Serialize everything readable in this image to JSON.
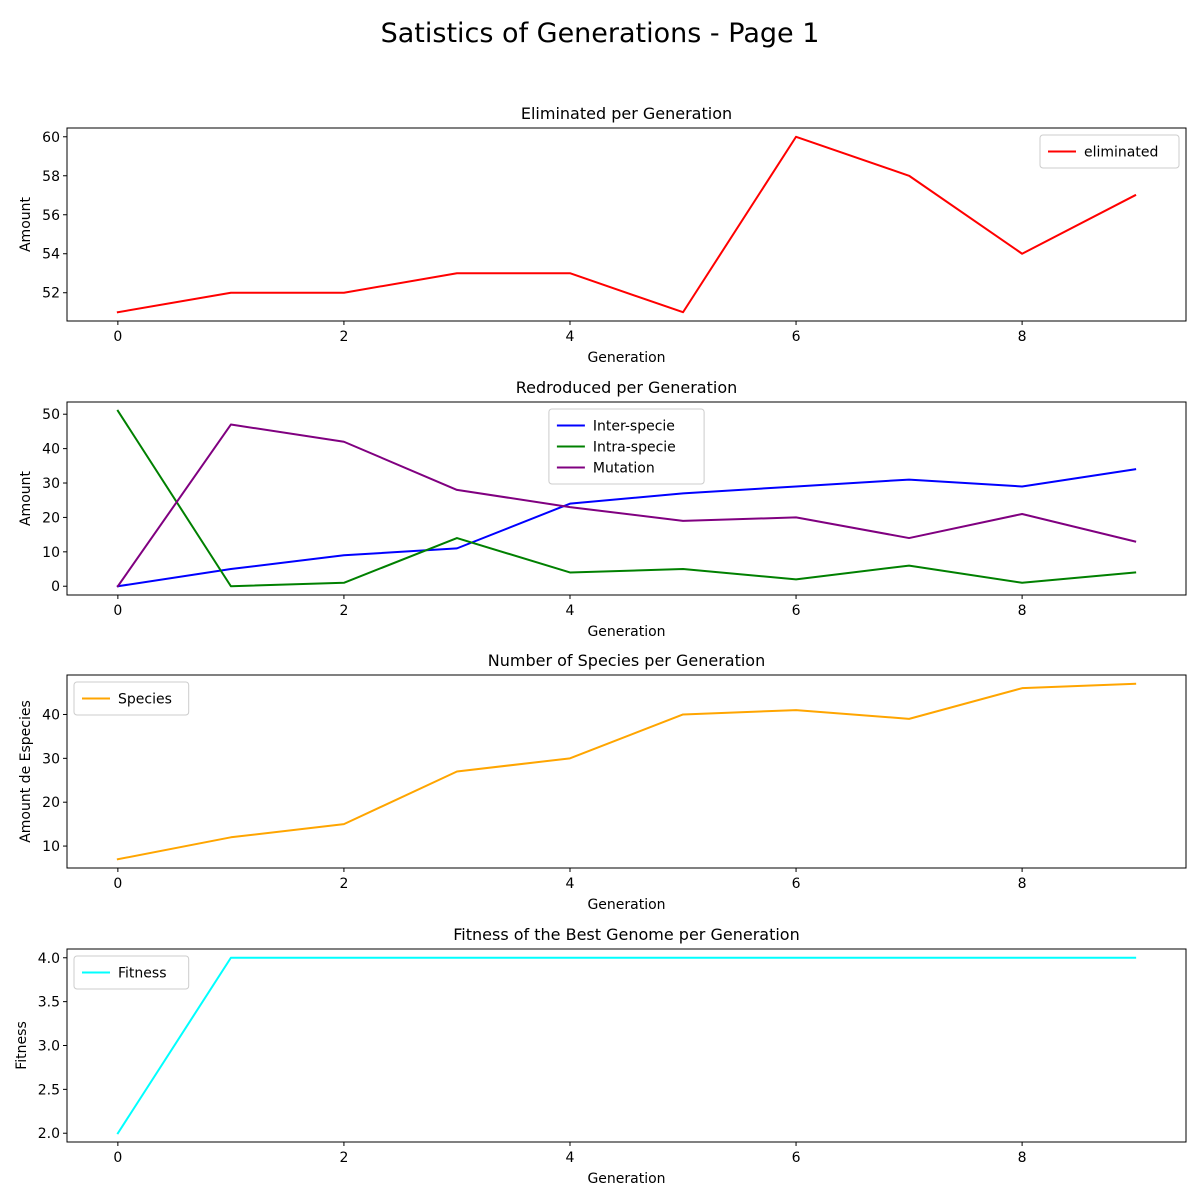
{
  "figure": {
    "title": "Satistics of Generations - Page 1"
  },
  "chart_data": [
    {
      "type": "line",
      "title": "Eliminated per Generation",
      "xlabel": "Generation",
      "ylabel": "Amount",
      "x": [
        0,
        1,
        2,
        3,
        4,
        5,
        6,
        7,
        8,
        9
      ],
      "xlim": [
        -0.45,
        9.45
      ],
      "ylim": [
        50.55,
        60.45
      ],
      "xticks": [
        0,
        2,
        4,
        6,
        8
      ],
      "yticks": [
        52,
        54,
        56,
        58,
        60
      ],
      "ytick_decimals": 0,
      "legend_position": "upper right",
      "series": [
        {
          "name": "eliminated",
          "color": "#ff0000",
          "values": [
            51,
            52,
            52,
            53,
            53,
            51,
            60,
            58,
            54,
            57
          ]
        }
      ]
    },
    {
      "type": "line",
      "title": "Redroduced per Generation",
      "xlabel": "Generation",
      "ylabel": "Amount",
      "x": [
        0,
        1,
        2,
        3,
        4,
        5,
        6,
        7,
        8,
        9
      ],
      "xlim": [
        -0.45,
        9.45
      ],
      "ylim": [
        -2.55,
        53.55
      ],
      "xticks": [
        0,
        2,
        4,
        6,
        8
      ],
      "yticks": [
        0,
        10,
        20,
        30,
        40,
        50
      ],
      "ytick_decimals": 0,
      "legend_position": "upper center",
      "series": [
        {
          "name": "Inter-specie",
          "color": "#0000ff",
          "values": [
            0,
            5,
            9,
            11,
            24,
            27,
            29,
            31,
            29,
            34
          ]
        },
        {
          "name": "Intra-specie",
          "color": "#008000",
          "values": [
            51,
            0,
            1,
            14,
            4,
            5,
            2,
            6,
            1,
            4
          ]
        },
        {
          "name": "Mutation",
          "color": "#800080",
          "values": [
            0,
            47,
            42,
            28,
            23,
            19,
            20,
            14,
            21,
            13
          ]
        }
      ]
    },
    {
      "type": "line",
      "title": "Number of Species per Generation",
      "xlabel": "Generation",
      "ylabel": "Amount de Especies",
      "x": [
        0,
        1,
        2,
        3,
        4,
        5,
        6,
        7,
        8,
        9
      ],
      "xlim": [
        -0.45,
        9.45
      ],
      "ylim": [
        5.0,
        49.0
      ],
      "xticks": [
        0,
        2,
        4,
        6,
        8
      ],
      "yticks": [
        10,
        20,
        30,
        40
      ],
      "ytick_decimals": 0,
      "legend_position": "upper left",
      "series": [
        {
          "name": "Species",
          "color": "#ffa500",
          "values": [
            7,
            12,
            15,
            27,
            30,
            40,
            41,
            39,
            46,
            47
          ]
        }
      ]
    },
    {
      "type": "line",
      "title": "Fitness of the Best Genome per Generation",
      "xlabel": "Generation",
      "ylabel": "Fitness",
      "x": [
        0,
        1,
        2,
        3,
        4,
        5,
        6,
        7,
        8,
        9
      ],
      "xlim": [
        -0.45,
        9.45
      ],
      "ylim": [
        1.9,
        4.1
      ],
      "xticks": [
        0,
        2,
        4,
        6,
        8
      ],
      "yticks": [
        2.0,
        2.5,
        3.0,
        3.5,
        4.0
      ],
      "ytick_decimals": 1,
      "legend_position": "upper left",
      "series": [
        {
          "name": "Fitness",
          "color": "#00ffff",
          "values": [
            2,
            4,
            4,
            4,
            4,
            4,
            4,
            4,
            4,
            4
          ]
        }
      ]
    }
  ]
}
